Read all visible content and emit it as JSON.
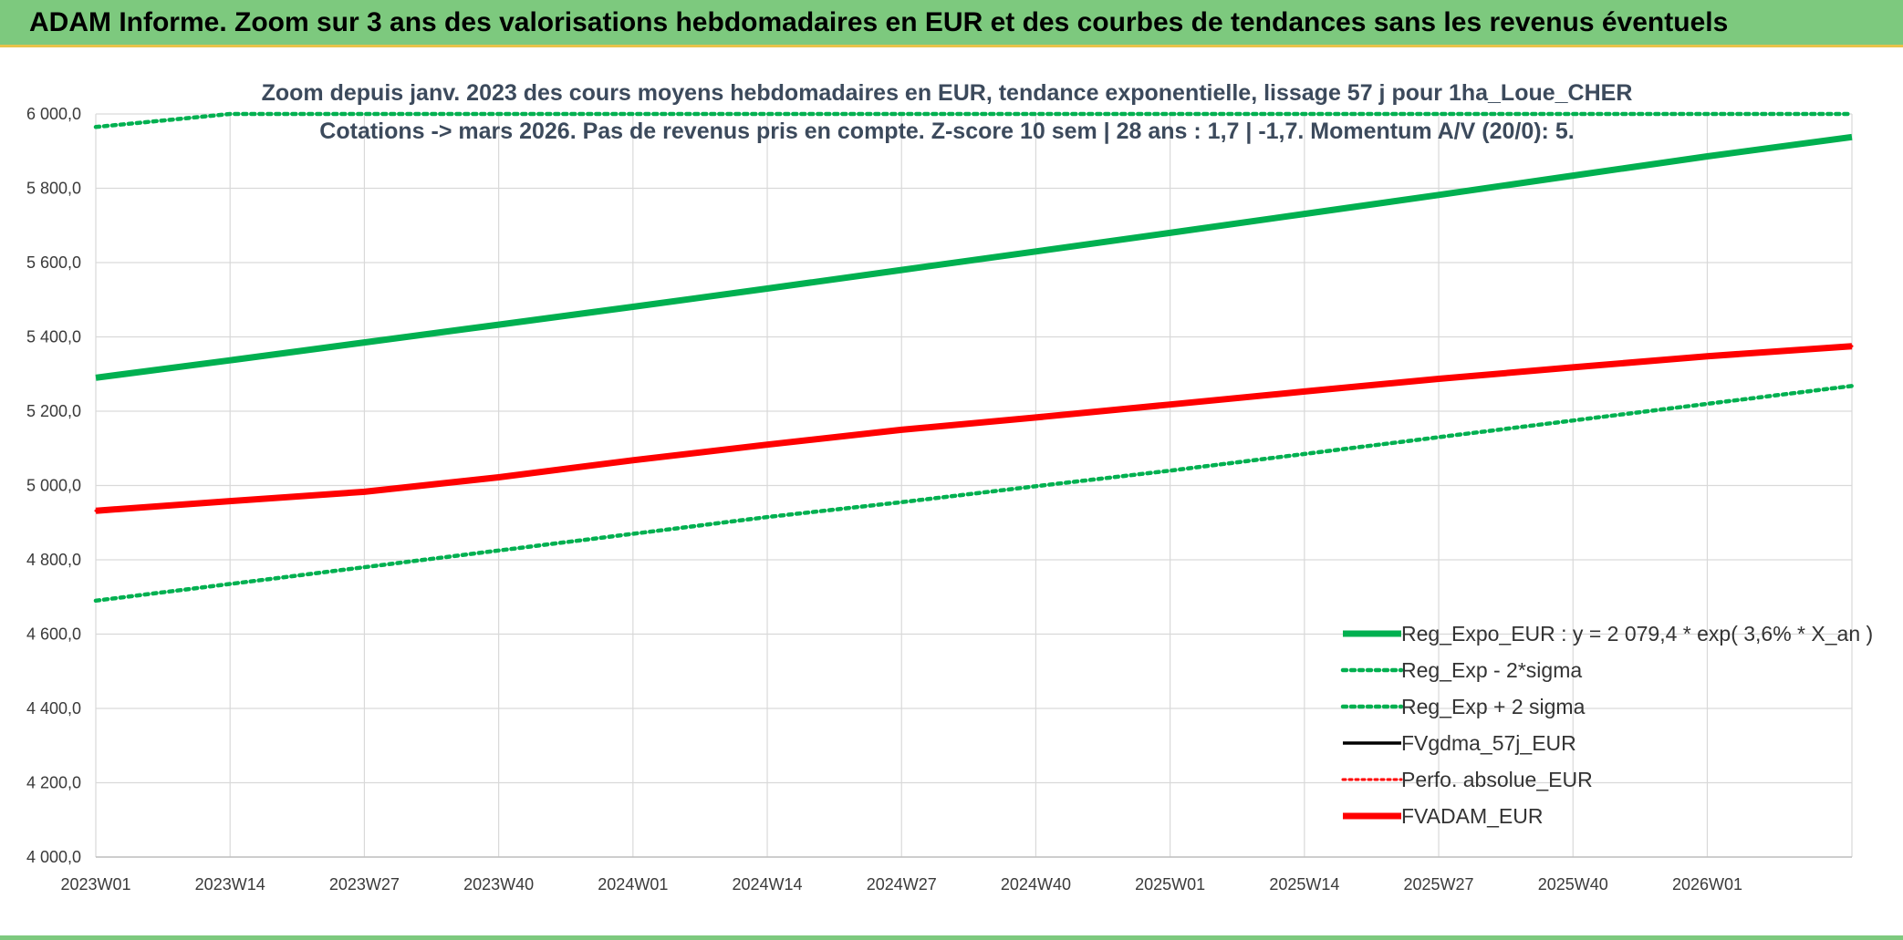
{
  "banner": {
    "title": "ADAM Informe. Zoom sur 3 ans des valorisations hebdomadaires en EUR et des courbes de tendances sans les revenus éventuels"
  },
  "colors": {
    "banner_bg": "#7dc97e",
    "green": "#00b050",
    "red": "#ff0000",
    "black": "#000000",
    "grid": "#d9d9d9"
  },
  "chart_data": {
    "type": "line",
    "title": "Zoom depuis janv. 2023 des cours moyens hebdomadaires en EUR, tendance exponentielle, lissage 57 j pour 1ha_Loue_CHER",
    "subtitle": "Cotations -> mars 2026. Pas de revenus pris en compte. Z-score 10 sem | 28 ans : 1,7 | -1,7. Momentum A/V (20/0): 5.",
    "ylim": [
      4000,
      6000
    ],
    "y_ticks": [
      "4 000,0",
      "4 200,0",
      "4 400,0",
      "4 600,0",
      "4 800,0",
      "5 000,0",
      "5 200,0",
      "5 400,0",
      "5 600,0",
      "5 800,0",
      "6 000,0"
    ],
    "x_ticks": [
      "2023W01",
      "2023W14",
      "2023W27",
      "2023W40",
      "2024W01",
      "2024W14",
      "2024W27",
      "2024W40",
      "2025W01",
      "2025W14",
      "2025W27",
      "2025W40",
      "2026W01"
    ],
    "x_points": [
      0,
      13,
      26,
      39,
      52,
      65,
      78,
      91,
      104,
      117,
      130,
      143,
      156,
      170
    ],
    "grid": true,
    "legend_position": "bottom-right",
    "series": [
      {
        "name": "Reg_Expo_EUR : y = 2 079,4 * exp( 3,6% *  X_an )",
        "color": "#00b050",
        "style": "solid-thick",
        "values": [
          5290,
          5337,
          5385,
          5433,
          5481,
          5530,
          5580,
          5630,
          5680,
          5731,
          5782,
          5834,
          5886,
          5938
        ]
      },
      {
        "name": "Reg_Exp - 2*sigma",
        "color": "#00b050",
        "style": "dotted",
        "values": [
          4690,
          4735,
          4780,
          4825,
          4870,
          4915,
          4955,
          4998,
          5040,
          5085,
          5130,
          5175,
          5220,
          5268
        ]
      },
      {
        "name": "Reg_Exp + 2 sigma",
        "color": "#00b050",
        "style": "dotted",
        "values": [
          5965,
          6000,
          6000,
          6000,
          6000,
          6000,
          6000,
          6000,
          6000,
          6000,
          6000,
          6000,
          6000,
          6000
        ]
      },
      {
        "name": "FVgdma_57j_EUR",
        "color": "#000000",
        "style": "solid",
        "values": [
          4932,
          4958,
          4985,
          5022,
          5068,
          5110,
          5150,
          5183,
          5218,
          5253,
          5287,
          5318,
          5348,
          5375
        ]
      },
      {
        "name": "Perfo. absolue_EUR",
        "color": "#ff0000",
        "style": "dotted-thin",
        "values": [
          4932,
          4958,
          4983,
          5022,
          5068,
          5110,
          5150,
          5183,
          5218,
          5253,
          5287,
          5318,
          5348,
          5375
        ]
      },
      {
        "name": "FVADAM_EUR",
        "color": "#ff0000",
        "style": "solid-thick",
        "values": [
          4932,
          4958,
          4983,
          5022,
          5068,
          5110,
          5150,
          5183,
          5218,
          5253,
          5287,
          5318,
          5348,
          5375
        ]
      }
    ]
  }
}
